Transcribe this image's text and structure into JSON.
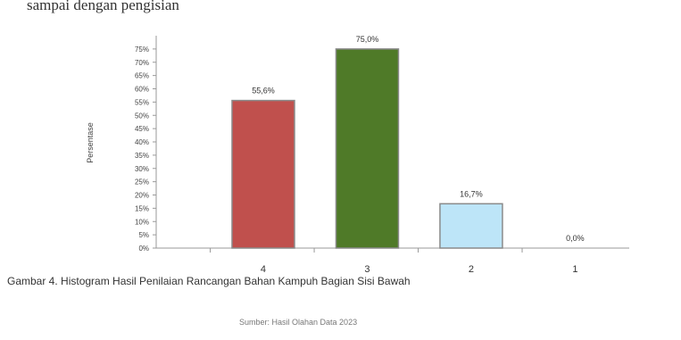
{
  "top_text": "sampai dengan pengisian",
  "caption": "Gambar 4. Histogram Hasil Penilaian Rancangan Bahan Kampuh Bagian Sisi Bawah",
  "source": "Sumber: Hasil Olahan Data 2023",
  "chart_data": {
    "type": "bar",
    "categories": [
      "4",
      "3",
      "2",
      "1"
    ],
    "values": [
      55.6,
      75.0,
      16.7,
      0.0
    ],
    "value_labels": [
      "55,6%",
      "75,0%",
      "16,7%",
      "0,0%"
    ],
    "bar_colors": [
      "#c0504d",
      "#4f7a28",
      "#bde5f8",
      "#ffffff"
    ],
    "ylabel": "Persentase",
    "yticks": [
      "0%",
      "5%",
      "10%",
      "15%",
      "20%",
      "25%",
      "30%",
      "35%",
      "40%",
      "45%",
      "50%",
      "55%",
      "60%",
      "65%",
      "70%",
      "75%"
    ],
    "ylim": [
      0,
      80
    ]
  }
}
